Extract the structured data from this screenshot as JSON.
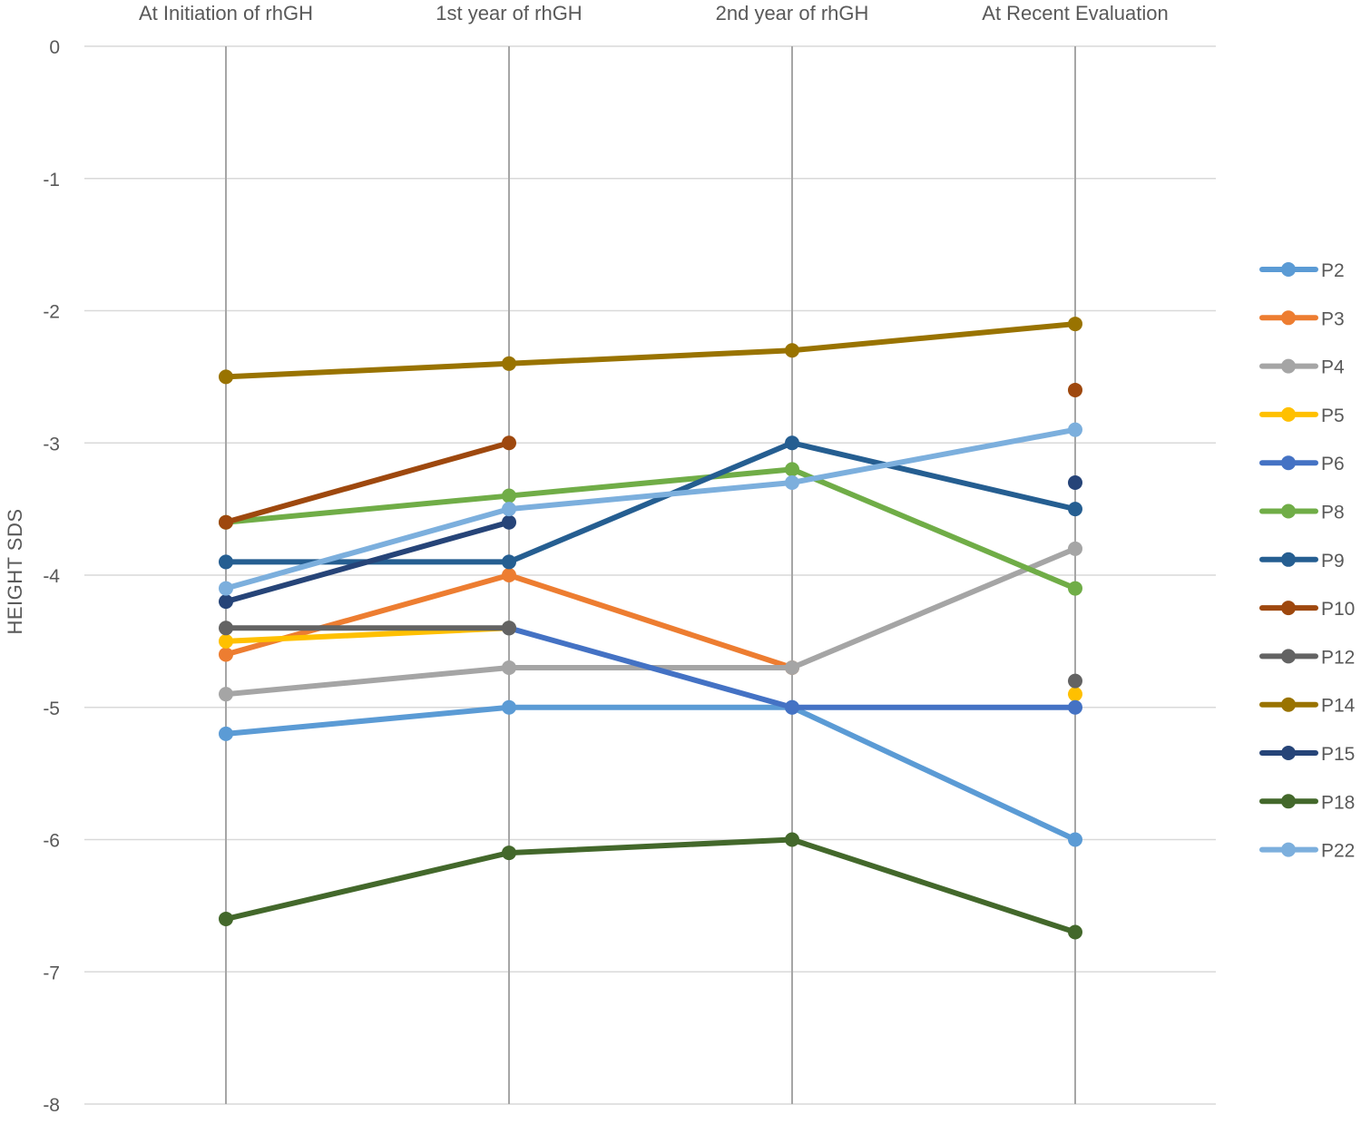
{
  "chart_data": {
    "type": "line",
    "title": "",
    "xlabel": "",
    "ylabel": "HEIGHT SDS",
    "ylim": [
      -8,
      0
    ],
    "yticks": [
      0,
      -1,
      -2,
      -3,
      -4,
      -5,
      -6,
      -7,
      -8
    ],
    "grid": true,
    "legend_position": "right",
    "categories": [
      "At Initiation of rhGH",
      "1st year of  rhGH",
      "2nd year of  rhGH",
      "At Recent Evaluation"
    ],
    "series": [
      {
        "name": "P2",
        "color": "#5B9BD5",
        "values": [
          -5.2,
          -5.0,
          -5.0,
          -6.0
        ]
      },
      {
        "name": "P3",
        "color": "#ED7D31",
        "values": [
          -4.6,
          -4.0,
          -4.7,
          null
        ]
      },
      {
        "name": "P4",
        "color": "#A5A5A5",
        "values": [
          -4.9,
          -4.7,
          -4.7,
          -3.8
        ]
      },
      {
        "name": "P5",
        "color": "#FFC000",
        "values": [
          -4.5,
          -4.4,
          null,
          -4.9
        ]
      },
      {
        "name": "P6",
        "color": "#4472C4",
        "values": [
          null,
          -4.4,
          -5.0,
          -5.0
        ]
      },
      {
        "name": "P8",
        "color": "#70AD47",
        "values": [
          -3.6,
          -3.4,
          -3.2,
          -4.1
        ]
      },
      {
        "name": "P9",
        "color": "#255E91",
        "values": [
          -3.9,
          -3.9,
          -3.0,
          -3.5
        ]
      },
      {
        "name": "P10",
        "color": "#9E480E",
        "values": [
          -3.6,
          -3.0,
          null,
          -2.6
        ]
      },
      {
        "name": "P12",
        "color": "#636363",
        "values": [
          -4.4,
          -4.4,
          null,
          -4.8
        ]
      },
      {
        "name": "P14",
        "color": "#997300",
        "values": [
          -2.5,
          -2.4,
          -2.3,
          -2.1
        ]
      },
      {
        "name": "P15",
        "color": "#264478",
        "values": [
          -4.2,
          -3.6,
          null,
          -3.3
        ]
      },
      {
        "name": "P18",
        "color": "#43682B",
        "values": [
          -6.6,
          -6.1,
          -6.0,
          -6.7
        ]
      },
      {
        "name": "P22",
        "color": "#7CAFDD",
        "values": [
          -4.1,
          -3.5,
          -3.3,
          -2.9
        ]
      }
    ]
  }
}
